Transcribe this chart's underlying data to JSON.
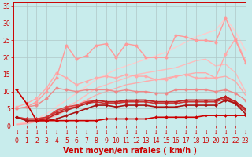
{
  "xlabel": "Vent moyen/en rafales ( km/h )",
  "bg_color": "#c8ecec",
  "grid_color": "#b0c8c8",
  "x": [
    0,
    1,
    2,
    3,
    4,
    5,
    6,
    7,
    8,
    9,
    10,
    11,
    12,
    13,
    14,
    15,
    16,
    17,
    18,
    19,
    20,
    21,
    22,
    23
  ],
  "lines": [
    {
      "y": [
        0.5,
        1.0,
        2.0,
        3.5,
        5.5,
        7.5,
        9.5,
        11.5,
        13.5,
        15.0,
        16.5,
        17.5,
        18.5,
        19.5,
        20.5,
        21.5,
        23.0,
        24.5,
        26.0,
        27.0,
        28.0,
        31.5,
        27.5,
        22.0
      ],
      "color": "#ffcccc",
      "lw": 1.0,
      "marker": null,
      "ms": 0,
      "zorder": 1
    },
    {
      "y": [
        0.5,
        0.8,
        1.5,
        2.5,
        4.0,
        5.5,
        7.0,
        9.0,
        11.0,
        12.0,
        13.0,
        14.0,
        15.0,
        15.5,
        16.0,
        16.5,
        17.0,
        18.0,
        19.0,
        19.5,
        17.5,
        18.0,
        15.5,
        10.0
      ],
      "color": "#ffbbbb",
      "lw": 1.0,
      "marker": null,
      "ms": 0,
      "zorder": 1
    },
    {
      "y": [
        0.3,
        0.6,
        1.2,
        2.0,
        3.0,
        4.5,
        6.0,
        7.5,
        9.0,
        10.0,
        11.0,
        12.0,
        12.5,
        13.0,
        13.5,
        14.0,
        14.5,
        15.0,
        15.5,
        15.5,
        14.0,
        14.5,
        13.0,
        9.0
      ],
      "color": "#ffaaaa",
      "lw": 1.0,
      "marker": null,
      "ms": 0,
      "zorder": 1
    },
    {
      "y": [
        5.5,
        6.5,
        8.0,
        11.0,
        15.5,
        14.0,
        12.0,
        13.0,
        14.0,
        14.5,
        14.0,
        15.0,
        14.5,
        14.5,
        13.5,
        13.5,
        14.5,
        15.0,
        14.0,
        14.0,
        14.0,
        21.0,
        25.5,
        19.0
      ],
      "color": "#ffaaaa",
      "lw": 1.0,
      "marker": "o",
      "ms": 2.5,
      "zorder": 2
    },
    {
      "y": [
        5.0,
        5.5,
        7.0,
        10.0,
        14.0,
        23.5,
        19.5,
        20.5,
        23.5,
        24.0,
        20.0,
        24.0,
        23.5,
        20.0,
        20.0,
        20.0,
        26.5,
        26.0,
        25.0,
        25.0,
        24.5,
        31.5,
        25.0,
        18.5
      ],
      "color": "#ff9999",
      "lw": 1.0,
      "marker": "o",
      "ms": 2.5,
      "zorder": 2
    },
    {
      "y": [
        5.0,
        5.5,
        6.0,
        8.0,
        11.0,
        10.5,
        10.0,
        10.5,
        10.5,
        10.5,
        10.0,
        10.5,
        10.0,
        10.0,
        9.5,
        9.5,
        10.5,
        10.5,
        10.5,
        10.5,
        10.0,
        10.5,
        9.5,
        7.5
      ],
      "color": "#ee8888",
      "lw": 1.0,
      "marker": "o",
      "ms": 2.5,
      "zorder": 3
    },
    {
      "y": [
        2.5,
        2.0,
        2.0,
        2.5,
        4.5,
        5.5,
        6.0,
        7.0,
        7.5,
        7.0,
        7.0,
        7.0,
        7.5,
        7.5,
        7.0,
        7.0,
        7.0,
        7.5,
        7.5,
        7.5,
        7.5,
        8.5,
        7.0,
        5.0
      ],
      "color": "#dd4444",
      "lw": 1.2,
      "marker": "D",
      "ms": 2.0,
      "zorder": 4
    },
    {
      "y": [
        2.5,
        2.0,
        2.0,
        2.5,
        4.0,
        5.0,
        5.5,
        6.5,
        7.0,
        6.5,
        6.5,
        7.0,
        7.0,
        7.0,
        6.5,
        6.5,
        6.5,
        7.0,
        7.0,
        7.0,
        7.0,
        8.0,
        6.5,
        4.5
      ],
      "color": "#cc3333",
      "lw": 1.2,
      "marker": "D",
      "ms": 2.0,
      "zorder": 4
    },
    {
      "y": [
        2.5,
        1.5,
        1.5,
        2.0,
        3.5,
        4.5,
        5.5,
        6.5,
        7.5,
        7.0,
        7.0,
        7.5,
        7.5,
        7.5,
        7.0,
        7.0,
        7.0,
        7.5,
        7.5,
        7.5,
        7.5,
        8.5,
        7.0,
        5.0
      ],
      "color": "#bb2222",
      "lw": 1.2,
      "marker": "D",
      "ms": 2.0,
      "zorder": 4
    },
    {
      "y": [
        2.5,
        1.5,
        1.5,
        1.5,
        2.0,
        3.0,
        4.0,
        5.0,
        6.0,
        6.0,
        5.5,
        6.0,
        6.0,
        6.0,
        5.5,
        5.5,
        5.5,
        6.0,
        6.0,
        6.0,
        6.0,
        7.5,
        6.5,
        3.5
      ],
      "color": "#aa1111",
      "lw": 1.2,
      "marker": "D",
      "ms": 2.0,
      "zorder": 4
    },
    {
      "y": [
        10.5,
        6.5,
        1.5,
        1.5,
        1.5,
        1.5,
        1.5,
        1.5,
        1.5,
        2.0,
        2.0,
        2.0,
        2.0,
        2.0,
        2.5,
        2.5,
        2.5,
        2.5,
        2.5,
        3.0,
        3.0,
        3.0,
        3.0,
        3.0
      ],
      "color": "#cc0000",
      "lw": 1.2,
      "marker": "D",
      "ms": 2.0,
      "zorder": 5
    }
  ],
  "ylim": [
    0,
    36
  ],
  "xlim": [
    -0.3,
    23
  ],
  "yticks": [
    0,
    5,
    10,
    15,
    20,
    25,
    30,
    35
  ],
  "xticks": [
    0,
    1,
    2,
    3,
    4,
    5,
    6,
    7,
    8,
    9,
    10,
    11,
    12,
    13,
    14,
    15,
    16,
    17,
    18,
    19,
    20,
    21,
    22,
    23
  ],
  "tick_color": "#cc0000",
  "label_color": "#cc0000",
  "tick_fontsize": 5.5,
  "xlabel_fontsize": 7.0
}
